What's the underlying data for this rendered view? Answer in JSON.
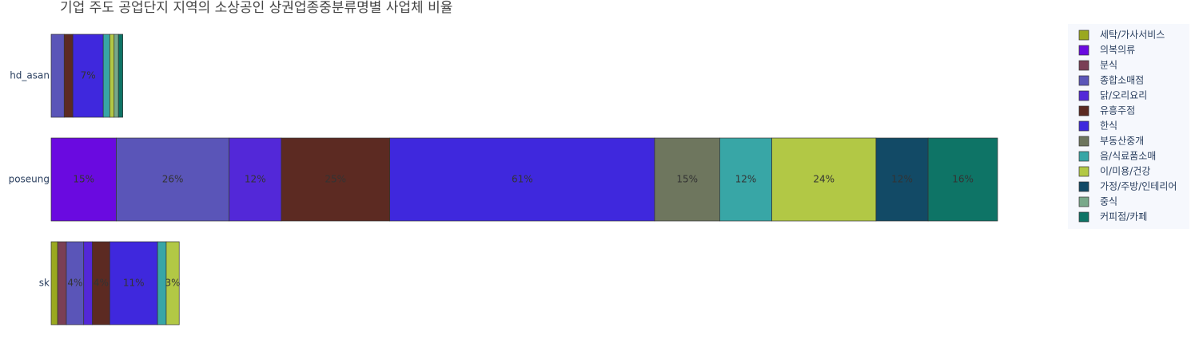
{
  "chart_data": {
    "type": "stacked_barh",
    "title": "기업 주도 공업단지 지역의 소상공인 상권업종중분류명별 사업체 비율",
    "categories": [
      "hd_asan",
      "poseung",
      "sk"
    ],
    "series": [
      {
        "name": "세탁/가사서비스",
        "color": "#9aa81f",
        "values": [
          null,
          null,
          1.5
        ],
        "value_labels": [
          null,
          null,
          null
        ]
      },
      {
        "name": "의복의류",
        "color": "#6a0ae0",
        "values": [
          null,
          15,
          null
        ],
        "value_labels": [
          null,
          "15%",
          null
        ]
      },
      {
        "name": "분식",
        "color": "#7a3f55",
        "values": [
          null,
          null,
          2
        ],
        "value_labels": [
          null,
          null,
          null
        ]
      },
      {
        "name": "종합소매점",
        "color": "#5a55b8",
        "values": [
          3,
          26,
          4
        ],
        "value_labels": [
          null,
          "26%",
          "4%"
        ]
      },
      {
        "name": "닭/오리요리",
        "color": "#5328d8",
        "values": [
          null,
          12,
          2
        ],
        "value_labels": [
          null,
          "12%",
          null
        ]
      },
      {
        "name": "유흥주점",
        "color": "#5c2a22",
        "values": [
          2,
          25,
          4
        ],
        "value_labels": [
          null,
          "25%",
          "4%"
        ]
      },
      {
        "name": "한식",
        "color": "#3f28dd",
        "values": [
          7,
          61,
          11
        ],
        "value_labels": [
          "7%",
          "61%",
          "11%"
        ]
      },
      {
        "name": "부동산중개",
        "color": "#6e765e",
        "values": [
          null,
          15,
          null
        ],
        "value_labels": [
          null,
          "15%",
          null
        ]
      },
      {
        "name": "음/식료품소매",
        "color": "#38a6a6",
        "values": [
          1.5,
          12,
          2
        ],
        "value_labels": [
          null,
          "12%",
          null
        ]
      },
      {
        "name": "이/미용/건강",
        "color": "#b2c845",
        "values": [
          1,
          24,
          3
        ],
        "value_labels": [
          null,
          "24%",
          "3%"
        ]
      },
      {
        "name": "가정/주방/인테리어",
        "color": "#124a66",
        "values": [
          null,
          12,
          null
        ],
        "value_labels": [
          null,
          "12%",
          null
        ]
      },
      {
        "name": "중식",
        "color": "#78a88a",
        "values": [
          1,
          null,
          null
        ],
        "value_labels": [
          null,
          null,
          null
        ]
      },
      {
        "name": "커피점/카페",
        "color": "#0e7466",
        "values": [
          1,
          16,
          null
        ],
        "value_labels": [
          null,
          "16%",
          null
        ]
      }
    ]
  }
}
